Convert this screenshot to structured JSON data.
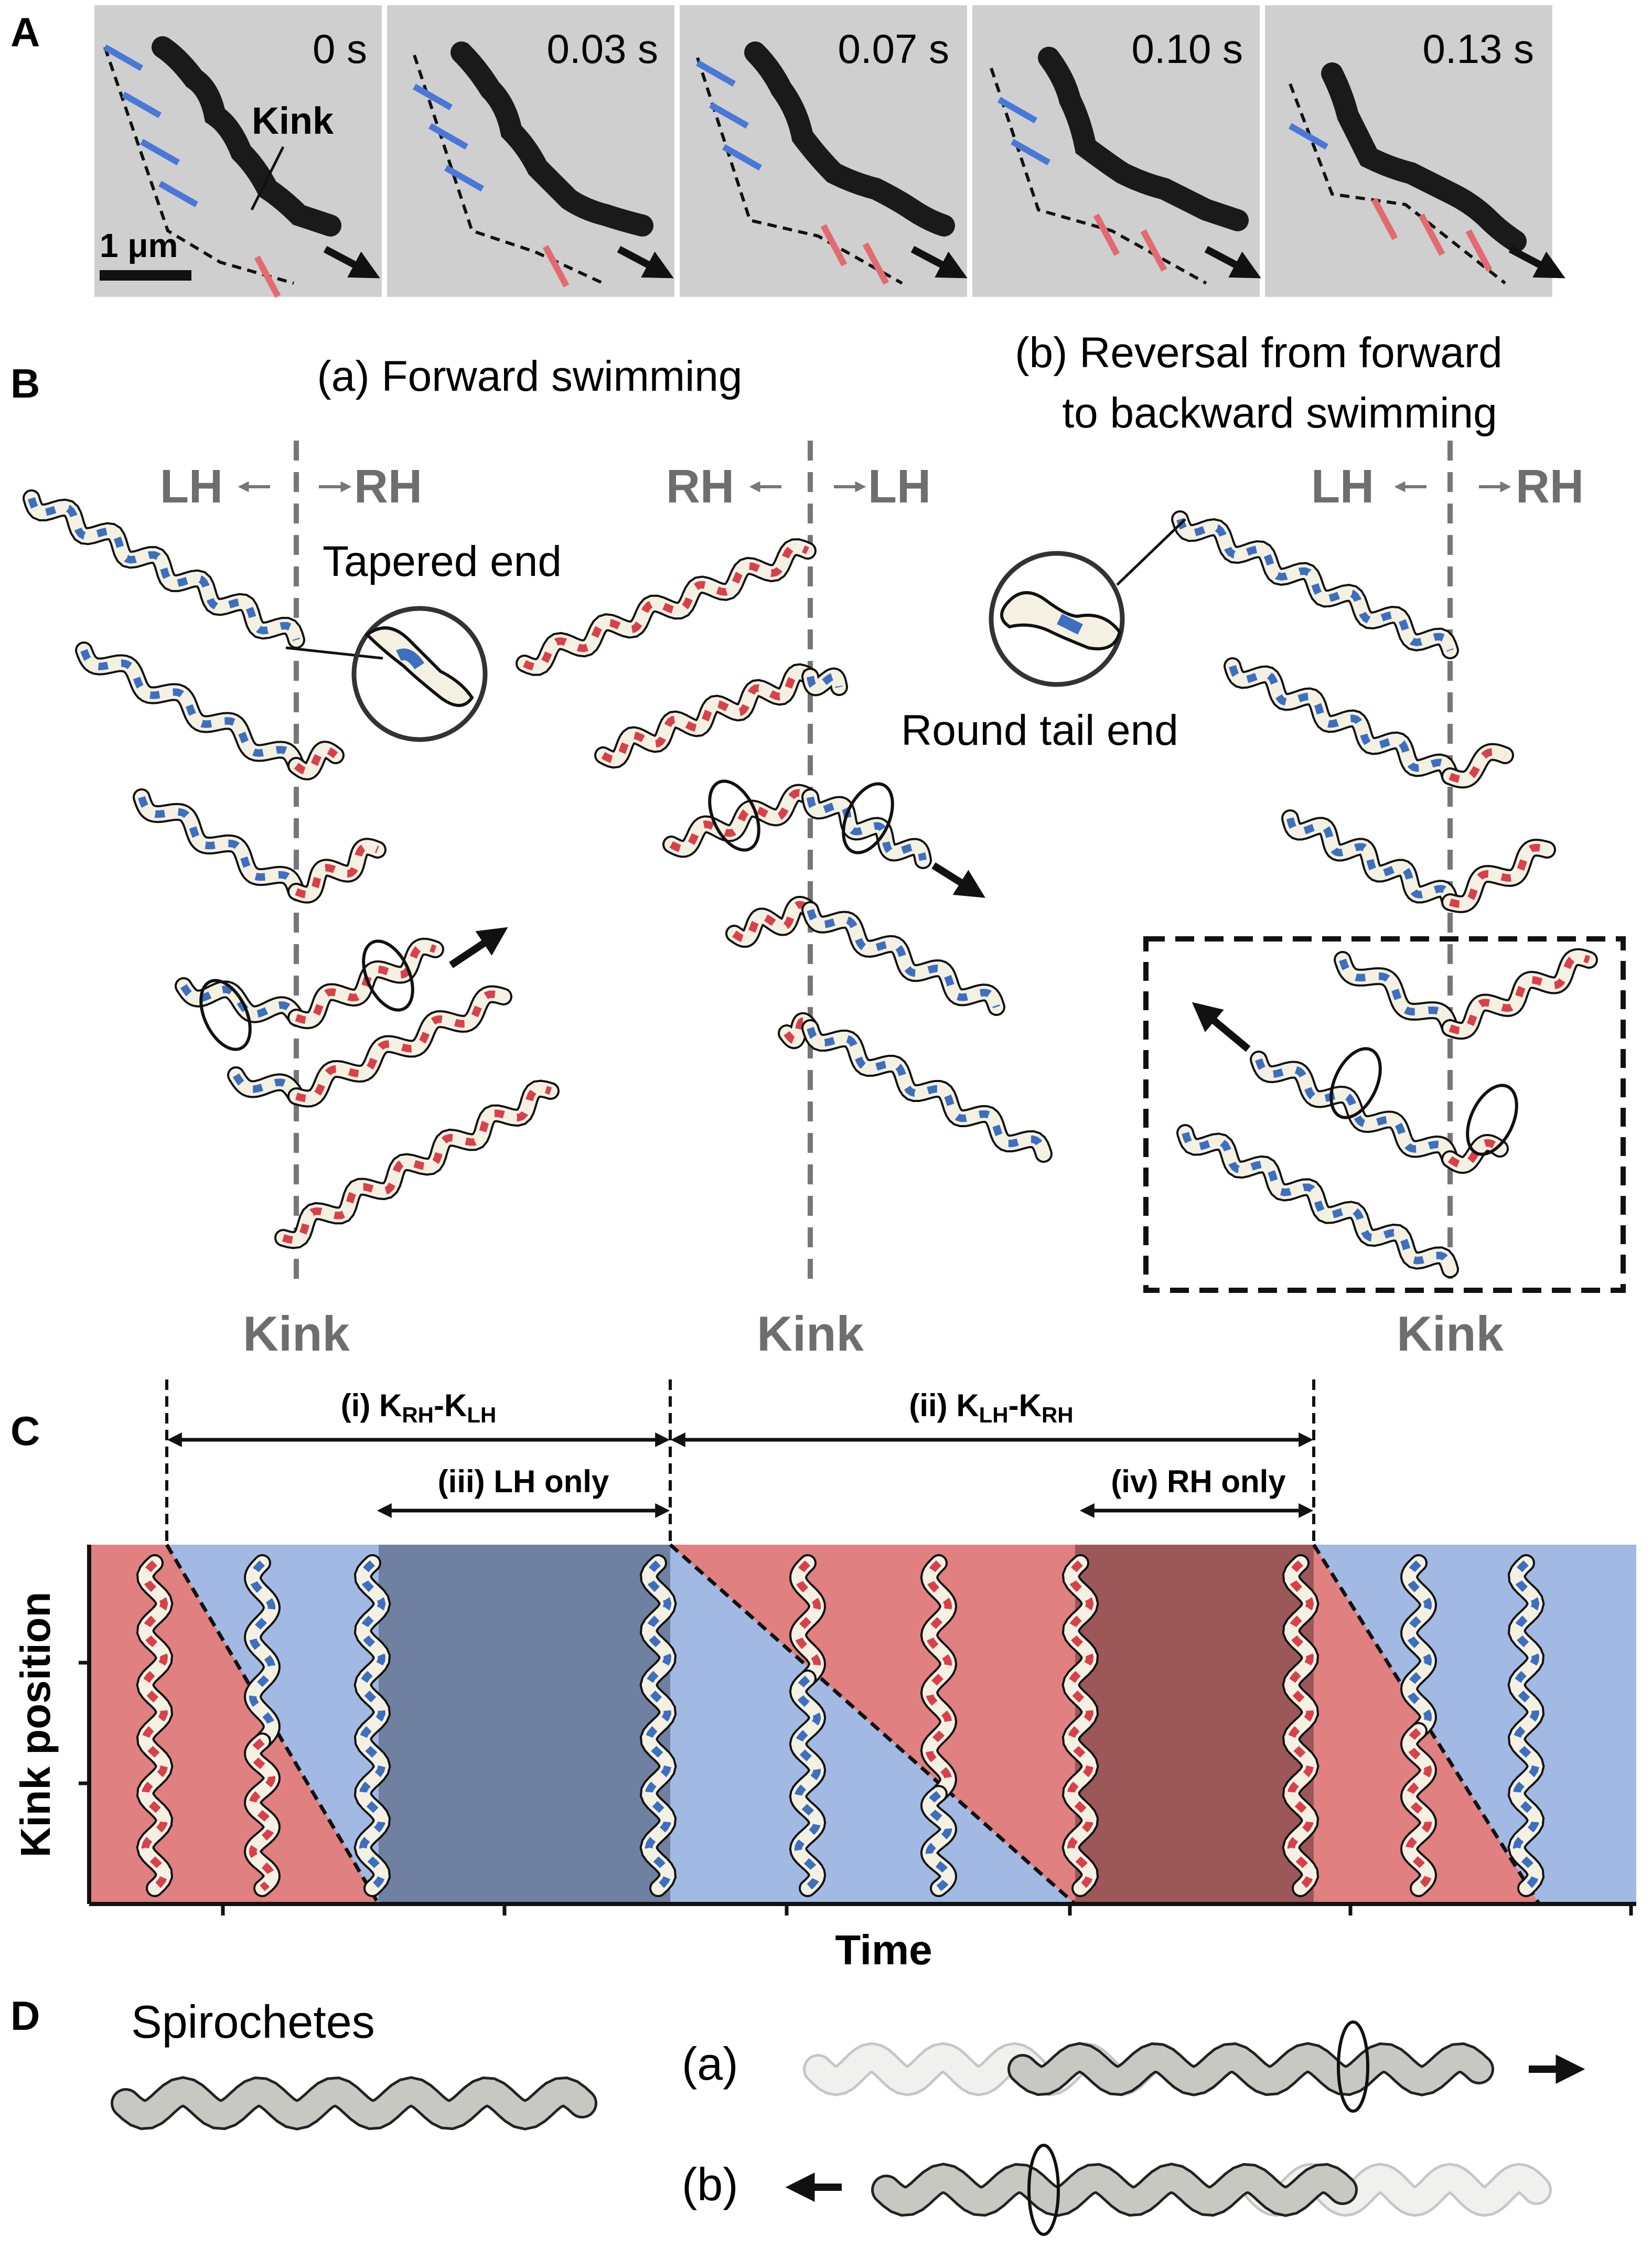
{
  "panels": {
    "A": "A",
    "B": "B",
    "C": "C",
    "D": "D"
  },
  "panel_a": {
    "frame_times": [
      "0 s",
      "0.03 s",
      "0.07 s",
      "0.10 s",
      "0.13 s"
    ],
    "kink_label": "Kink",
    "scale_bar": "1 μm"
  },
  "panel_b": {
    "title_a": "(a) Forward swimming",
    "title_b_line1": "(b) Reversal from forward",
    "title_b_line2": "to backward swimming",
    "col1": {
      "left": "LH",
      "right": "RH"
    },
    "col2": {
      "left": "RH",
      "right": "LH"
    },
    "col3": {
      "left": "LH",
      "right": "RH"
    },
    "tapered_end": "Tapered end",
    "round_tail_end": "Round tail end",
    "kink": "Kink"
  },
  "panel_c": {
    "span_i_prefix": "(i) K",
    "span_i_sub1": "RH",
    "span_i_mid": "-K",
    "span_i_sub2": "LH",
    "span_ii_prefix": "(ii) K",
    "span_ii_sub1": "LH",
    "span_ii_mid": "-K",
    "span_ii_sub2": "RH",
    "span_iii": "(iii) LH only",
    "span_iv": "(iv) RH only",
    "ylabel": "Kink position",
    "xlabel": "Time"
  },
  "panel_d": {
    "title": "Spirochetes",
    "a": "(a)",
    "b": "(b)"
  },
  "colors": {
    "lh_blue": "#3d6fc0",
    "rh_red": "#d9404a",
    "bg_red": "#e08080",
    "bg_blue": "#a2b9e3",
    "bg_darkblue": "#6f80a0",
    "bg_darkred": "#9c5758"
  }
}
